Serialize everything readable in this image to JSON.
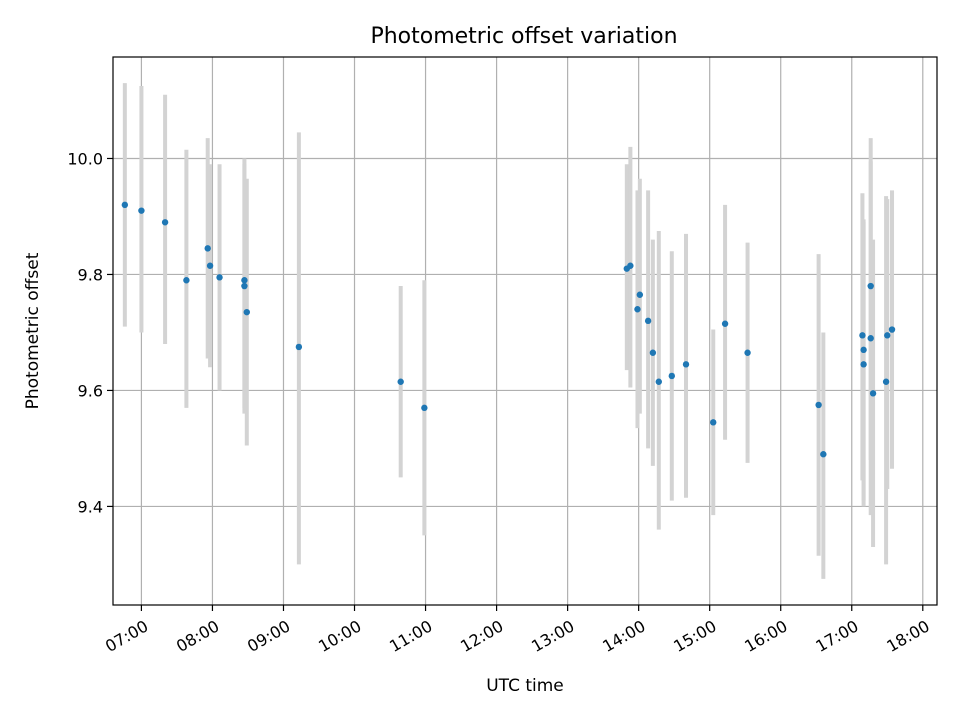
{
  "chart_data": {
    "type": "scatter",
    "title": "Photometric offset variation",
    "xlabel": "UTC time",
    "ylabel": "Photometric offset",
    "xlim": [
      "06:36",
      "18:12"
    ],
    "ylim": [
      9.23,
      10.175
    ],
    "grid": true,
    "x_ticks": [
      "07:00",
      "08:00",
      "09:00",
      "10:00",
      "11:00",
      "12:00",
      "13:00",
      "14:00",
      "15:00",
      "16:00",
      "17:00",
      "18:00"
    ],
    "y_ticks": [
      9.4,
      9.6,
      9.8,
      10.0
    ],
    "y_tick_labels": [
      "9.4",
      "9.6",
      "9.8",
      "10.0"
    ],
    "marker_color": "#1f77b4",
    "errorbar_color": "#d3d3d3",
    "points": [
      {
        "x": "06:46",
        "y": 9.92,
        "low": 9.71,
        "high": 10.13
      },
      {
        "x": "07:00",
        "y": 9.91,
        "low": 9.7,
        "high": 10.125
      },
      {
        "x": "07:20",
        "y": 9.89,
        "low": 9.68,
        "high": 10.11
      },
      {
        "x": "07:38",
        "y": 9.79,
        "low": 9.57,
        "high": 10.015
      },
      {
        "x": "07:56",
        "y": 9.845,
        "low": 9.655,
        "high": 10.035
      },
      {
        "x": "07:58",
        "y": 9.815,
        "low": 9.64,
        "high": 9.99
      },
      {
        "x": "08:06",
        "y": 9.795,
        "low": 9.6,
        "high": 9.99
      },
      {
        "x": "08:27",
        "y": 9.79,
        "low": 9.56,
        "high": 10.0
      },
      {
        "x": "08:27",
        "y": 9.78,
        "low": 9.57,
        "high": 9.99
      },
      {
        "x": "08:29",
        "y": 9.735,
        "low": 9.505,
        "high": 9.965
      },
      {
        "x": "09:13",
        "y": 9.675,
        "low": 9.3,
        "high": 10.045
      },
      {
        "x": "10:39",
        "y": 9.615,
        "low": 9.45,
        "high": 9.78
      },
      {
        "x": "10:59",
        "y": 9.57,
        "low": 9.35,
        "high": 9.79
      },
      {
        "x": "13:50",
        "y": 9.81,
        "low": 9.635,
        "high": 9.99
      },
      {
        "x": "13:53",
        "y": 9.815,
        "low": 9.605,
        "high": 10.02
      },
      {
        "x": "13:59",
        "y": 9.74,
        "low": 9.535,
        "high": 9.945
      },
      {
        "x": "14:01",
        "y": 9.765,
        "low": 9.56,
        "high": 9.965
      },
      {
        "x": "14:08",
        "y": 9.72,
        "low": 9.5,
        "high": 9.945
      },
      {
        "x": "14:12",
        "y": 9.665,
        "low": 9.47,
        "high": 9.86
      },
      {
        "x": "14:17",
        "y": 9.615,
        "low": 9.36,
        "high": 9.875
      },
      {
        "x": "14:28",
        "y": 9.625,
        "low": 9.41,
        "high": 9.84
      },
      {
        "x": "14:40",
        "y": 9.645,
        "low": 9.415,
        "high": 9.87
      },
      {
        "x": "15:03",
        "y": 9.545,
        "low": 9.385,
        "high": 9.705
      },
      {
        "x": "15:13",
        "y": 9.715,
        "low": 9.515,
        "high": 9.92
      },
      {
        "x": "15:32",
        "y": 9.665,
        "low": 9.475,
        "high": 9.855
      },
      {
        "x": "16:32",
        "y": 9.575,
        "low": 9.315,
        "high": 9.835
      },
      {
        "x": "16:36",
        "y": 9.49,
        "low": 9.275,
        "high": 9.7
      },
      {
        "x": "17:09",
        "y": 9.695,
        "low": 9.445,
        "high": 9.94
      },
      {
        "x": "17:10",
        "y": 9.67,
        "low": 9.41,
        "high": 9.895
      },
      {
        "x": "17:10",
        "y": 9.645,
        "low": 9.4,
        "high": 9.89
      },
      {
        "x": "17:16",
        "y": 9.78,
        "low": 9.48,
        "high": 10.035
      },
      {
        "x": "17:16",
        "y": 9.69,
        "low": 9.385,
        "high": 9.995
      },
      {
        "x": "17:18",
        "y": 9.595,
        "low": 9.33,
        "high": 9.86
      },
      {
        "x": "17:29",
        "y": 9.615,
        "low": 9.3,
        "high": 9.935
      },
      {
        "x": "17:30",
        "y": 9.695,
        "low": 9.43,
        "high": 9.93
      },
      {
        "x": "17:34",
        "y": 9.705,
        "low": 9.465,
        "high": 9.945
      }
    ]
  }
}
